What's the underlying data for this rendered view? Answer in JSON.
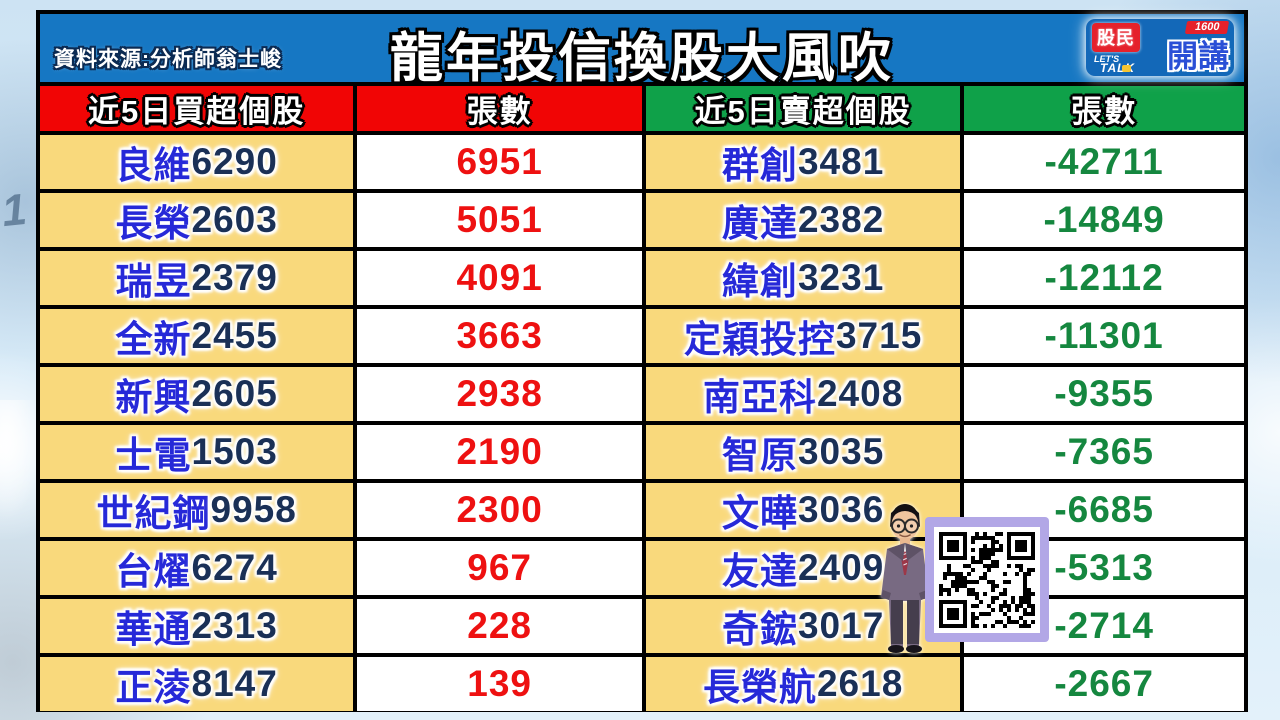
{
  "header": {
    "source": "資料來源:分析師翁士峻",
    "title": "龍年投信換股大風吹",
    "logo": {
      "brand": "股民",
      "number": "1600",
      "lets": "LET'S",
      "talk": "TALK",
      "main": "開講"
    }
  },
  "colors": {
    "header_blue": "#1677c3",
    "buy_header_red": "#f10505",
    "sell_header_green": "#0fa149",
    "stock_cell_yellow": "#f9d97c",
    "buy_value_red": "#ee1111",
    "sell_value_green": "#15873f",
    "stock_name_blue": "#2629d8",
    "stock_code_navy": "#1a3056"
  },
  "table": {
    "left": {
      "name_header": "近5日買超個股",
      "value_header": "張數",
      "rows": [
        {
          "name": "良維",
          "code": "6290",
          "value": "6951"
        },
        {
          "name": "長榮",
          "code": "2603",
          "value": "5051"
        },
        {
          "name": "瑞昱",
          "code": "2379",
          "value": "4091"
        },
        {
          "name": "全新",
          "code": "2455",
          "value": "3663"
        },
        {
          "name": "新興",
          "code": "2605",
          "value": "2938"
        },
        {
          "name": "士電",
          "code": "1503",
          "value": "2190"
        },
        {
          "name": "世紀鋼",
          "code": "9958",
          "value": "2300"
        },
        {
          "name": "台燿",
          "code": "6274",
          "value": "967"
        },
        {
          "name": "華通",
          "code": "2313",
          "value": "228"
        },
        {
          "name": "正淩",
          "code": "8147",
          "value": "139"
        }
      ]
    },
    "right": {
      "name_header": "近5日賣超個股",
      "value_header": "張數",
      "rows": [
        {
          "name": "群創",
          "code": "3481",
          "value": "-42711"
        },
        {
          "name": "廣達",
          "code": "2382",
          "value": "-14849"
        },
        {
          "name": "緯創",
          "code": "3231",
          "value": "-12112"
        },
        {
          "name": "定穎投控",
          "code": "3715",
          "value": "-11301"
        },
        {
          "name": "南亞科",
          "code": "2408",
          "value": "-9355"
        },
        {
          "name": "智原",
          "code": "3035",
          "value": "-7365"
        },
        {
          "name": "文曄",
          "code": "3036",
          "value": "-6685"
        },
        {
          "name": "友達",
          "code": "2409",
          "value": "-5313"
        },
        {
          "name": "奇鋐",
          "code": "3017",
          "value": "-2714"
        },
        {
          "name": "長榮航",
          "code": "2618",
          "value": "-2667"
        }
      ]
    }
  },
  "chart_data": [
    {
      "type": "table",
      "title": "近5日買超個股",
      "columns": [
        "近5日買超個股",
        "張數"
      ],
      "rows": [
        [
          "良維6290",
          6951
        ],
        [
          "長榮2603",
          5051
        ],
        [
          "瑞昱2379",
          4091
        ],
        [
          "全新2455",
          3663
        ],
        [
          "新興2605",
          2938
        ],
        [
          "士電1503",
          2190
        ],
        [
          "世紀鋼9958",
          2300
        ],
        [
          "台燿6274",
          967
        ],
        [
          "華通2313",
          228
        ],
        [
          "正淩8147",
          139
        ]
      ]
    },
    {
      "type": "table",
      "title": "近5日賣超個股",
      "columns": [
        "近5日賣超個股",
        "張數"
      ],
      "rows": [
        [
          "群創3481",
          -42711
        ],
        [
          "廣達2382",
          -14849
        ],
        [
          "緯創3231",
          -12112
        ],
        [
          "定穎投控3715",
          -11301
        ],
        [
          "南亞科2408",
          -9355
        ],
        [
          "智原3035",
          -7365
        ],
        [
          "文曄3036",
          -6685
        ],
        [
          "友達2409",
          -5313
        ],
        [
          "奇鋐3017",
          -2714
        ],
        [
          "長榮航2618",
          -2667
        ]
      ]
    }
  ]
}
